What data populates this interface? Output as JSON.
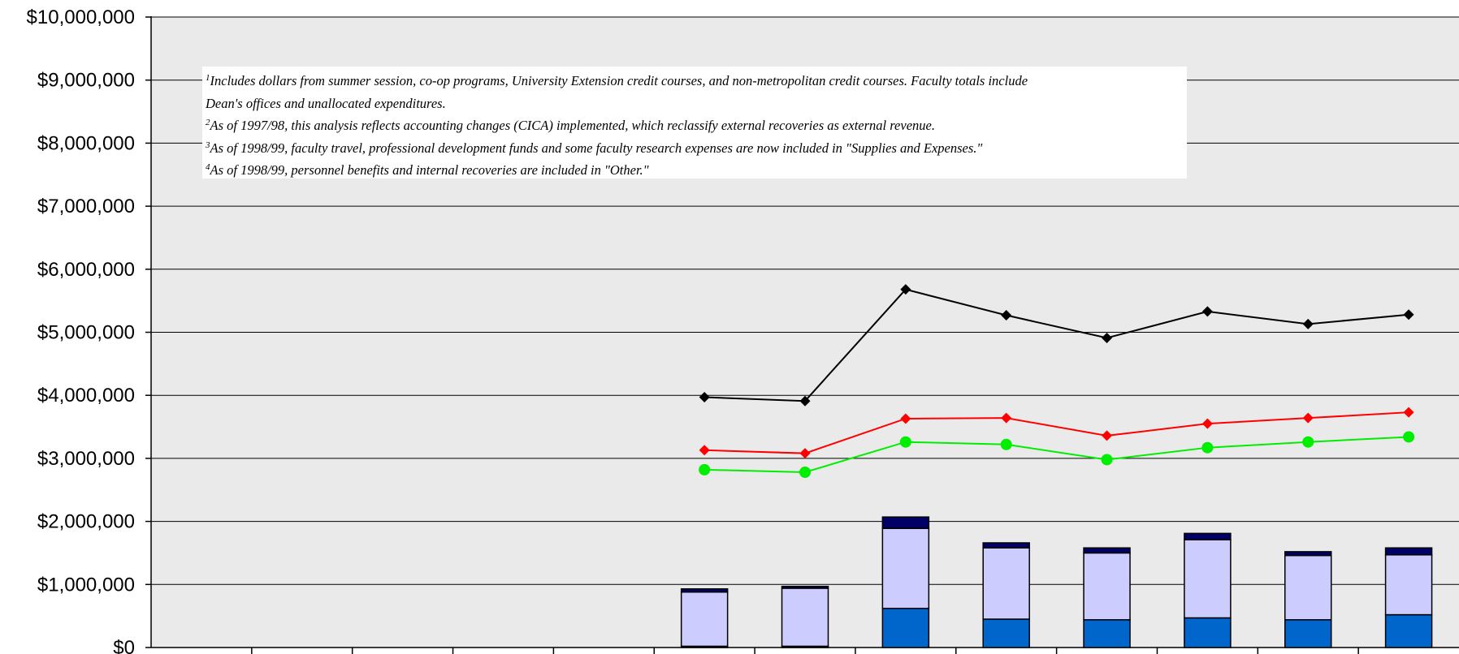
{
  "chart_data": {
    "type": "bar",
    "title": "",
    "xlabel": "",
    "ylabel": "",
    "ylim": [
      0,
      10000000
    ],
    "yticks": [
      0,
      1000000,
      2000000,
      3000000,
      4000000,
      5000000,
      6000000,
      7000000,
      8000000,
      9000000,
      10000000
    ],
    "ytick_labels": [
      "$0",
      "$1,000,000",
      "$2,000,000",
      "$3,000,000",
      "$4,000,000",
      "$5,000,000",
      "$6,000,000",
      "$7,000,000",
      "$8,000,000",
      "$9,000,000",
      "$10,000,000"
    ],
    "category_count": 13,
    "grid": true,
    "bar_series": [
      {
        "color": "#0066cc",
        "values": [
          null,
          null,
          null,
          null,
          null,
          20000,
          20000,
          620000,
          450000,
          440000,
          470000,
          440000,
          520000
        ]
      },
      {
        "color": "#ccccff",
        "values": [
          null,
          null,
          null,
          null,
          null,
          860000,
          920000,
          1270000,
          1130000,
          1060000,
          1240000,
          1020000,
          950000
        ]
      },
      {
        "color": "#000066",
        "values": [
          null,
          null,
          null,
          null,
          null,
          50000,
          30000,
          180000,
          80000,
          80000,
          100000,
          60000,
          110000
        ]
      }
    ],
    "line_series": [
      {
        "color": "#000000",
        "marker": "diamond",
        "values": [
          null,
          null,
          null,
          null,
          null,
          3970000,
          3910000,
          5680000,
          5270000,
          4910000,
          5330000,
          5130000,
          5280000
        ]
      },
      {
        "color": "#ff0000",
        "marker": "diamond",
        "values": [
          null,
          null,
          null,
          null,
          null,
          3130000,
          3080000,
          3630000,
          3640000,
          3360000,
          3550000,
          3640000,
          3730000
        ]
      },
      {
        "color": "#00ee00",
        "marker": "circle",
        "values": [
          null,
          null,
          null,
          null,
          null,
          2820000,
          2780000,
          3260000,
          3220000,
          2980000,
          3170000,
          3260000,
          3340000
        ]
      }
    ]
  },
  "notes": [
    {
      "num": "1",
      "text": "Includes dollars from summer session, co-op programs, University Extension credit courses, and non-metropolitan credit courses.  Faculty totals include"
    },
    {
      "num": "",
      "text": "Dean's offices and unallocated expenditures."
    },
    {
      "num": "2",
      "text": "As of 1997/98, this analysis reflects accounting changes (CICA) implemented, which reclassify external recoveries as external revenue."
    },
    {
      "num": "3",
      "text": "As of 1998/99, faculty travel, professional development funds and some faculty research expenses are now included in \"Supplies and Expenses.\""
    },
    {
      "num": "4",
      "text": "As of 1998/99, personnel benefits and internal recoveries are included in \"Other.\""
    }
  ]
}
